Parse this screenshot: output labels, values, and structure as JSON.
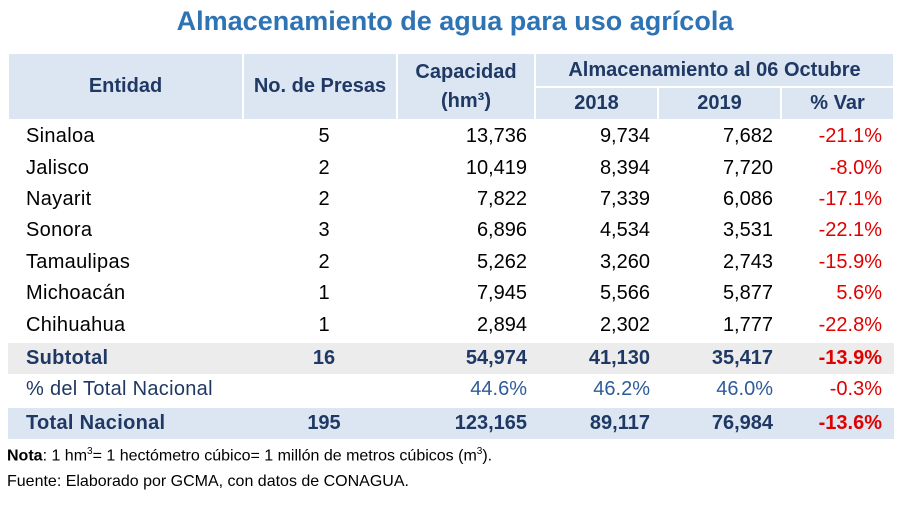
{
  "title": "Almacenamiento de agua para uso agrícola",
  "headers": {
    "entidad": "Entidad",
    "presas": "No. de Presas",
    "capacidad": "Capacidad",
    "capacidad_unit": "(hm³)",
    "almacenamiento": "Almacenamiento al 06 Octubre",
    "y2018": "2018",
    "y2019": "2019",
    "var": "% Var"
  },
  "chart_data": {
    "type": "table",
    "title": "Almacenamiento de agua para uso agrícola",
    "columns": [
      "Entidad",
      "No. de Presas",
      "Capacidad (hm³)",
      "2018",
      "2019",
      "% Var"
    ],
    "rows": [
      {
        "entidad": "Sinaloa",
        "presas": "5",
        "capacidad": "13,736",
        "y2018": "9,734",
        "y2019": "7,682",
        "var": "-21.1%"
      },
      {
        "entidad": "Jalisco",
        "presas": "2",
        "capacidad": "10,419",
        "y2018": "8,394",
        "y2019": "7,720",
        "var": "-8.0%"
      },
      {
        "entidad": "Nayarit",
        "presas": "2",
        "capacidad": "7,822",
        "y2018": "7,339",
        "y2019": "6,086",
        "var": "-17.1%"
      },
      {
        "entidad": "Sonora",
        "presas": "3",
        "capacidad": "6,896",
        "y2018": "4,534",
        "y2019": "3,531",
        "var": "-22.1%"
      },
      {
        "entidad": "Tamaulipas",
        "presas": "2",
        "capacidad": "5,262",
        "y2018": "3,260",
        "y2019": "2,743",
        "var": "-15.9%"
      },
      {
        "entidad": "Michoacán",
        "presas": "1",
        "capacidad": "7,945",
        "y2018": "5,566",
        "y2019": "5,877",
        "var": "5.6%"
      },
      {
        "entidad": "Chihuahua",
        "presas": "1",
        "capacidad": "2,894",
        "y2018": "2,302",
        "y2019": "1,777",
        "var": "-22.8%"
      }
    ],
    "subtotal": {
      "entidad": "Subtotal",
      "presas": "16",
      "capacidad": "54,974",
      "y2018": "41,130",
      "y2019": "35,417",
      "var": "-13.9%"
    },
    "pct_nacional": {
      "entidad": "% del Total Nacional",
      "presas": "",
      "capacidad": "44.6%",
      "y2018": "46.2%",
      "y2019": "46.0%",
      "var": "-0.3%"
    },
    "total": {
      "entidad": "Total Nacional",
      "presas": "195",
      "capacidad": "123,165",
      "y2018": "89,117",
      "y2019": "76,984",
      "var": "-13.6%"
    }
  },
  "footer": {
    "note_label": "Nota",
    "note_text_a": ": 1 hm",
    "note_sup_a": "3",
    "note_text_b": "= 1 hectómetro cúbico= 1 millón de metros cúbicos (m",
    "note_sup_b": "3",
    "note_text_c": ").",
    "source": "Fuente: Elaborado por GCMA, con datos de CONAGUA."
  },
  "colors": {
    "title": "#2e74b5",
    "header_bg": "#dbe6f2",
    "header_text": "#1f3864",
    "negative": "#e00000",
    "subtotal_bg": "#ececec"
  }
}
